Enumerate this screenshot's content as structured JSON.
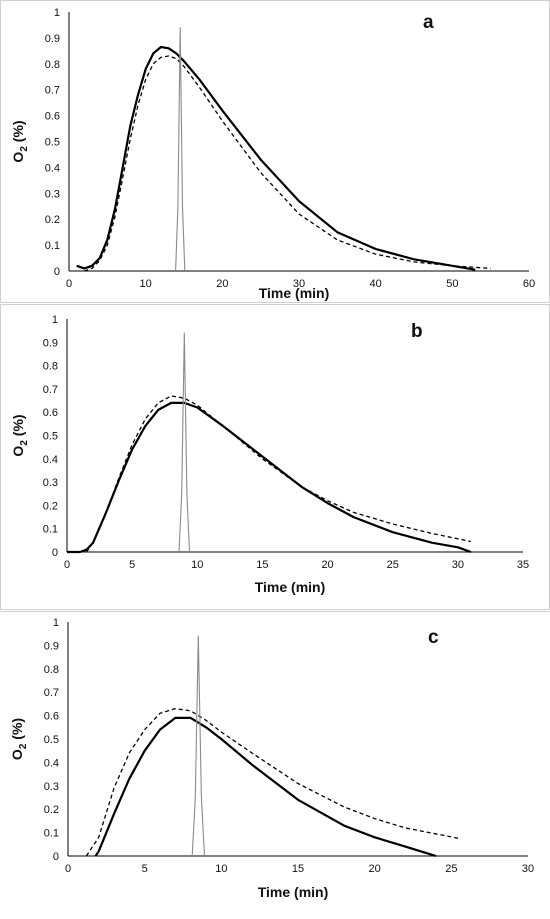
{
  "chart_data": [
    {
      "type": "line",
      "panel_label": "a",
      "xlabel": "Time (min)",
      "ylabel": "O2 (%)",
      "xlim": [
        0,
        60
      ],
      "ylim": [
        0,
        1
      ],
      "x_ticks": [
        "0",
        "10",
        "20",
        "30",
        "40",
        "50",
        "60"
      ],
      "y_ticks": [
        "0",
        "0.1",
        "0.2",
        "0.3",
        "0.4",
        "0.5",
        "0.6",
        "0.7",
        "0.8",
        "0.9",
        "1"
      ],
      "grid": false,
      "series": [
        {
          "style": "solid",
          "x": [
            1,
            2,
            3,
            4,
            5,
            6,
            7,
            8,
            9,
            10,
            11,
            12,
            13,
            14,
            15,
            17,
            20,
            25,
            30,
            35,
            40,
            45,
            50,
            52,
            53
          ],
          "y": [
            0.02,
            0.01,
            0.02,
            0.05,
            0.12,
            0.24,
            0.4,
            0.56,
            0.68,
            0.78,
            0.84,
            0.865,
            0.86,
            0.84,
            0.81,
            0.74,
            0.62,
            0.43,
            0.27,
            0.15,
            0.085,
            0.045,
            0.02,
            0.01,
            0.005
          ]
        },
        {
          "style": "dashed",
          "x": [
            2,
            3,
            4,
            5,
            6,
            7,
            8,
            9,
            10,
            11,
            12,
            13,
            14,
            15,
            17,
            20,
            25,
            30,
            35,
            40,
            45,
            50,
            55
          ],
          "y": [
            0.0,
            0.01,
            0.04,
            0.1,
            0.21,
            0.36,
            0.51,
            0.64,
            0.74,
            0.8,
            0.825,
            0.83,
            0.82,
            0.79,
            0.71,
            0.58,
            0.38,
            0.22,
            0.12,
            0.065,
            0.035,
            0.02,
            0.01
          ]
        },
        {
          "style": "gray-peak",
          "x": [
            13.9,
            14.2,
            14.5,
            14.8,
            15.1
          ],
          "y": [
            0.0,
            0.25,
            0.94,
            0.25,
            0.0
          ]
        }
      ]
    },
    {
      "type": "line",
      "panel_label": "b",
      "xlabel": "Time (min)",
      "ylabel": "O2 (%)",
      "xlim": [
        0,
        35
      ],
      "ylim": [
        0,
        1
      ],
      "x_ticks": [
        "0",
        "5",
        "10",
        "15",
        "20",
        "25",
        "30",
        "35"
      ],
      "y_ticks": [
        "0",
        "0.1",
        "0.2",
        "0.3",
        "0.4",
        "0.5",
        "0.6",
        "0.7",
        "0.8",
        "0.9",
        "1"
      ],
      "grid": false,
      "series": [
        {
          "style": "solid",
          "x": [
            0,
            1,
            1.5,
            2,
            3,
            4,
            5,
            6,
            7,
            8,
            9,
            10,
            12,
            15,
            18,
            20,
            22,
            25,
            27,
            28,
            30,
            31
          ],
          "y": [
            0,
            0,
            0.01,
            0.04,
            0.17,
            0.31,
            0.44,
            0.54,
            0.61,
            0.64,
            0.64,
            0.62,
            0.54,
            0.41,
            0.28,
            0.21,
            0.15,
            0.085,
            0.055,
            0.04,
            0.02,
            0.0
          ]
        },
        {
          "style": "dashed",
          "x": [
            1.5,
            2,
            3,
            4,
            5,
            6,
            7,
            8,
            9,
            10,
            12,
            15,
            18,
            20,
            22,
            25,
            28,
            31
          ],
          "y": [
            0.0,
            0.04,
            0.17,
            0.32,
            0.46,
            0.57,
            0.64,
            0.67,
            0.66,
            0.63,
            0.54,
            0.4,
            0.28,
            0.22,
            0.17,
            0.12,
            0.08,
            0.045
          ]
        },
        {
          "style": "gray-peak",
          "x": [
            8.6,
            8.8,
            9.0,
            9.2,
            9.4
          ],
          "y": [
            0.0,
            0.25,
            0.94,
            0.25,
            0.0
          ]
        }
      ]
    },
    {
      "type": "line",
      "panel_label": "c",
      "xlabel": "Time (min)",
      "ylabel": "O2 (%)",
      "xlim": [
        0,
        30
      ],
      "ylim": [
        0,
        1
      ],
      "x_ticks": [
        "0",
        "5",
        "10",
        "15",
        "20",
        "25",
        "30"
      ],
      "y_ticks": [
        "0",
        "0.1",
        "0.2",
        "0.3",
        "0.4",
        "0.5",
        "0.6",
        "0.7",
        "0.8",
        "0.9",
        "1"
      ],
      "grid": false,
      "series": [
        {
          "style": "solid",
          "x": [
            1.8,
            2,
            3,
            4,
            5,
            6,
            7,
            8,
            9,
            10,
            12,
            15,
            18,
            20,
            22,
            23,
            24
          ],
          "y": [
            0.0,
            0.02,
            0.18,
            0.33,
            0.45,
            0.54,
            0.59,
            0.59,
            0.55,
            0.5,
            0.39,
            0.24,
            0.13,
            0.08,
            0.04,
            0.02,
            0.0
          ]
        },
        {
          "style": "dashed",
          "x": [
            1.2,
            2,
            3,
            4,
            5,
            6,
            7,
            8,
            9,
            10,
            12,
            15,
            18,
            20,
            22,
            25.5
          ],
          "y": [
            0.0,
            0.08,
            0.29,
            0.44,
            0.54,
            0.61,
            0.63,
            0.62,
            0.58,
            0.53,
            0.44,
            0.31,
            0.21,
            0.16,
            0.12,
            0.075
          ]
        },
        {
          "style": "gray-peak",
          "x": [
            8.1,
            8.3,
            8.5,
            8.7,
            8.9
          ],
          "y": [
            0.0,
            0.25,
            0.94,
            0.25,
            0.0
          ]
        }
      ]
    }
  ]
}
